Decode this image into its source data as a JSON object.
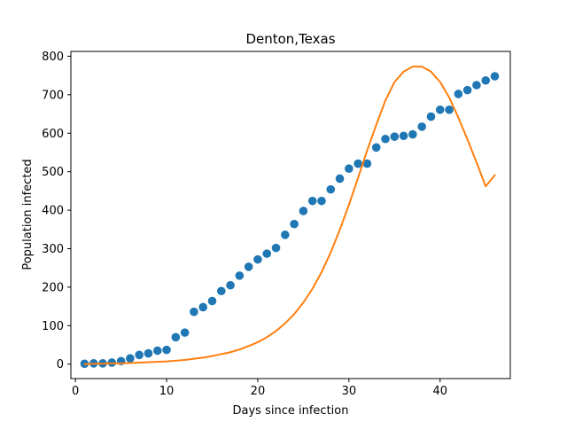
{
  "chart_data": {
    "type": "scatter",
    "title": "Denton,Texas",
    "xlabel": "Days since infection",
    "ylabel": "Population infected",
    "xlim": [
      -0.5,
      47.7
    ],
    "ylim": [
      -37.5,
      812.5
    ],
    "xticks": [
      0,
      10,
      20,
      30,
      40
    ],
    "yticks": [
      0,
      100,
      200,
      300,
      400,
      500,
      600,
      700,
      800
    ],
    "grid": false,
    "legend": "none",
    "series": [
      {
        "kind": "scatter",
        "color": "#1f77b4",
        "x": [
          1,
          2,
          3,
          4,
          5,
          6,
          7,
          8,
          9,
          10,
          11,
          12,
          13,
          14,
          15,
          16,
          17,
          18,
          19,
          20,
          21,
          22,
          23,
          24,
          25,
          26,
          27,
          28,
          29,
          30,
          31,
          32,
          33,
          34,
          35,
          36,
          37,
          38,
          39,
          40,
          41,
          42,
          43,
          44,
          45,
          46
        ],
        "y": [
          1,
          2,
          2,
          4,
          8,
          15,
          24,
          28,
          35,
          37,
          70,
          82,
          136,
          148,
          164,
          190,
          205,
          230,
          253,
          272,
          287,
          302,
          336,
          364,
          398,
          424,
          424,
          454,
          482,
          508,
          521,
          521,
          563,
          585,
          591,
          593,
          597,
          617,
          643,
          661,
          661,
          702,
          712,
          725,
          737,
          748
        ]
      },
      {
        "kind": "line",
        "color": "#ff7f0e",
        "x": [
          1,
          2,
          3,
          4,
          5,
          6,
          7,
          8,
          9,
          10,
          11,
          12,
          13,
          14,
          15,
          16,
          17,
          18,
          19,
          20,
          21,
          22,
          23,
          24,
          25,
          26,
          27,
          28,
          29,
          30,
          31,
          32,
          33,
          34,
          35,
          36,
          37,
          38,
          39,
          40,
          41,
          42,
          43,
          44,
          45,
          46
        ],
        "y": [
          0,
          1,
          1,
          2,
          2,
          3,
          4,
          5,
          6,
          7,
          9,
          11,
          14,
          17,
          21,
          26,
          31,
          38,
          47,
          57,
          70,
          86,
          106,
          130,
          160,
          196,
          239,
          290,
          349,
          414,
          484,
          555,
          622,
          685,
          733,
          760,
          773,
          773,
          760,
          733,
          693,
          641,
          584,
          524,
          462,
          491
        ]
      }
    ]
  }
}
